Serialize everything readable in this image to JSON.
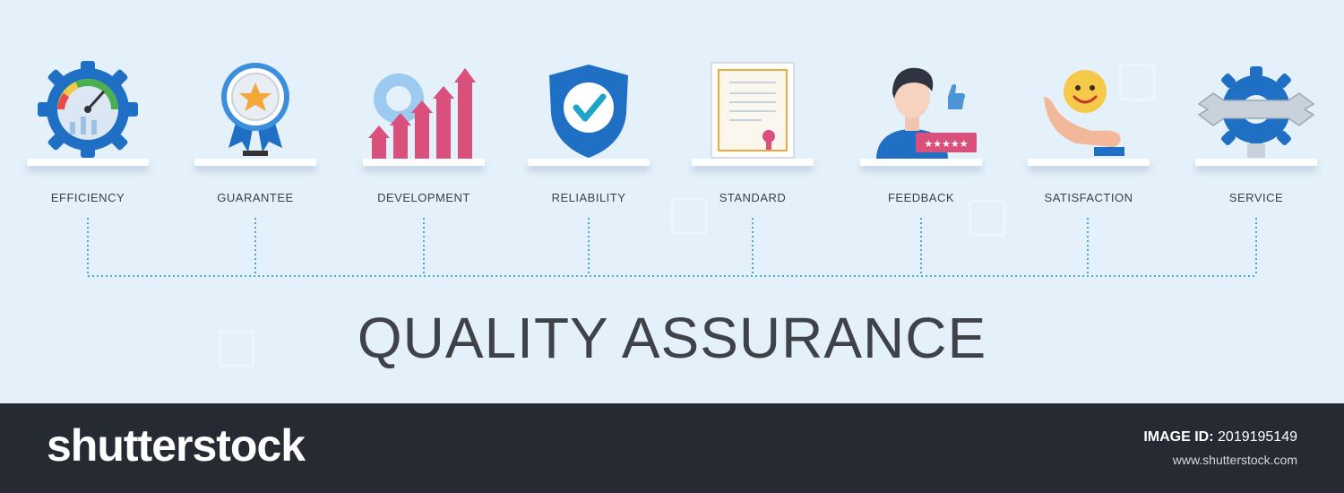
{
  "infographic": {
    "title": "QUALITY ASSURANCE",
    "items": [
      {
        "label": "EFFICIENCY",
        "icon": "speedometer-gear-icon"
      },
      {
        "label": "GUARANTEE",
        "icon": "award-medal-icon"
      },
      {
        "label": "DEVELOPMENT",
        "icon": "growth-chart-gear-icon"
      },
      {
        "label": "RELIABILITY",
        "icon": "shield-check-icon"
      },
      {
        "label": "STANDARD",
        "icon": "certificate-icon"
      },
      {
        "label": "FEEDBACK",
        "icon": "user-rating-icon"
      },
      {
        "label": "SATISFACTION",
        "icon": "smile-hand-icon"
      },
      {
        "label": "SERVICE",
        "icon": "wrench-gear-icon"
      }
    ]
  },
  "footer": {
    "brand": "shutterstock",
    "image_id_label": "IMAGE ID:",
    "image_id": "2019195149",
    "url": "www.shutterstock.com"
  },
  "colors": {
    "background": "#e4f1fb",
    "accent_blue": "#1f6fc4",
    "accent_pink": "#d9507d",
    "connector": "#4aa8d8",
    "footer": "#262a33"
  }
}
